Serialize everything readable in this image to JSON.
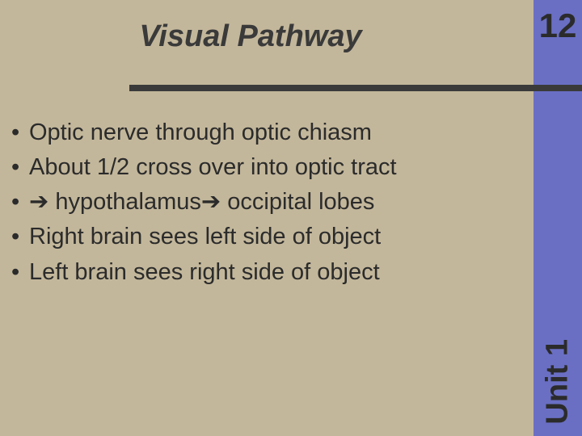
{
  "slide": {
    "background_color": "#c3b79b",
    "sidebar_color": "#6a6fc4",
    "rule_color": "#3a3a3a",
    "title_color": "#3a3a3a",
    "text_color": "#2b2b2b",
    "slide_number_color": "#2b2b2b",
    "unit_label_color": "#2b2b2b",
    "title": "Visual Pathway",
    "title_fontsize": 38,
    "slide_number": "12",
    "slide_number_fontsize": 42,
    "unit_label": "Unit 1",
    "unit_label_fontsize": 38,
    "bullet_fontsize": 29,
    "bullets": [
      "Optic nerve through optic chiasm",
      "About 1/2 cross over into optic tract",
      "➔ hypothalamus➔ occipital lobes",
      "Right brain sees left side of object",
      "Left brain sees right side of object"
    ]
  }
}
